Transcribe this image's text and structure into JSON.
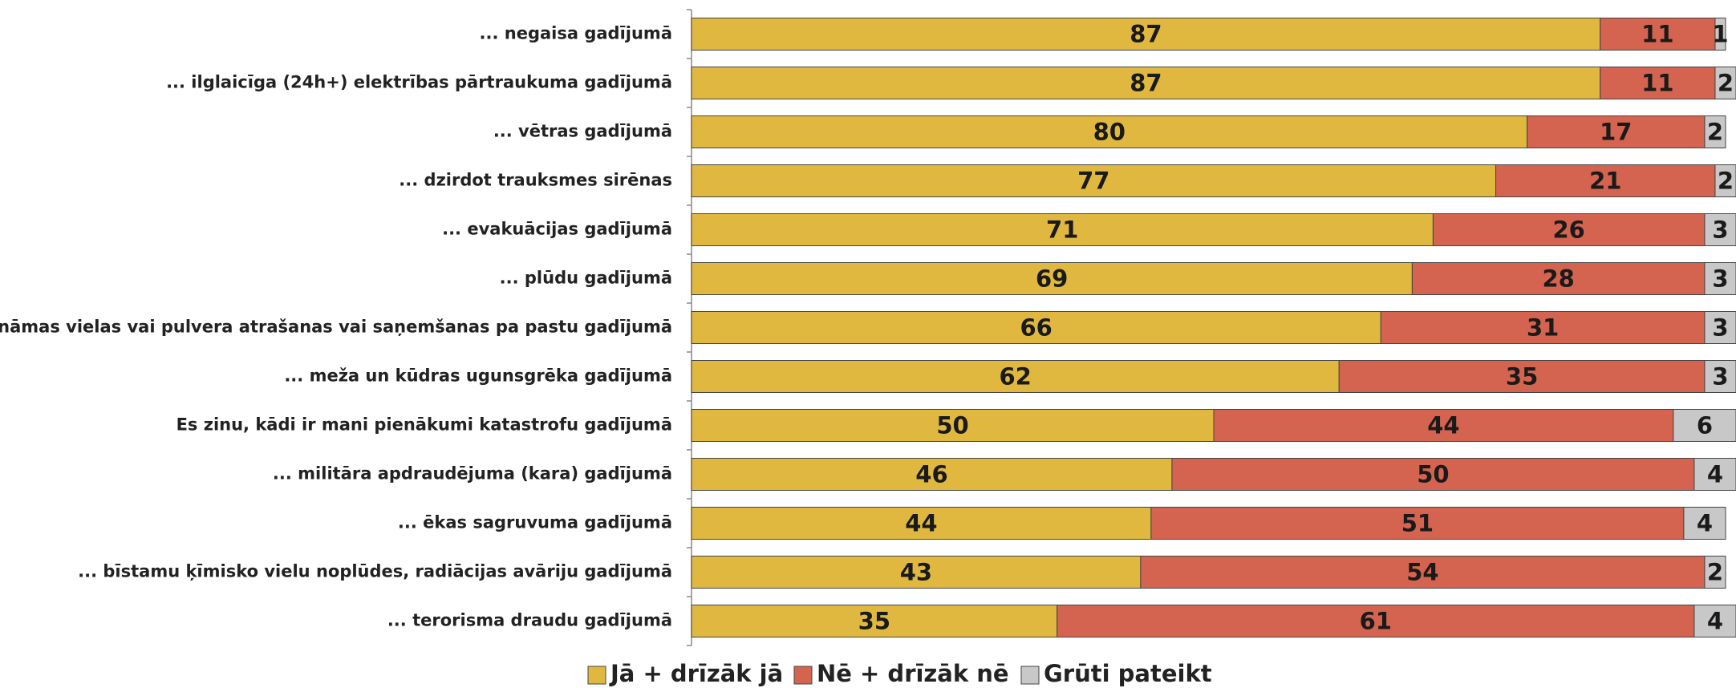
{
  "chart_data": {
    "type": "stacked_bar_horizontal",
    "categories": [
      "... negaisa gadījumā",
      "... ilglaicīga (24h+) elektrības pārtraukuma gadījumā",
      "... vētras gadījumā",
      "... dzirdot trauksmes sirēnas",
      "... evakuācijas gadījumā",
      "... plūdu gadījumā",
      "... nezināmas vielas vai pulvera atrašanas vai saņemšanas pa pastu gadījumā",
      "... meža un kūdras ugunsgrēka gadījumā",
      "Es zinu, kādi ir mani pienākumi katastrofu gadījumā",
      "... militāra apdraudējuma (kara) gadījumā",
      "... ēkas sagruvuma gadījumā",
      "... bīstamu ķīmisko vielu noplūdes, radiācijas avāriju gadījumā",
      "... terorisma draudu gadījumā"
    ],
    "series": [
      {
        "name": "Jā + drīzāk jā",
        "color": "#e0b840",
        "values": [
          87,
          87,
          80,
          77,
          71,
          69,
          66,
          62,
          50,
          46,
          44,
          43,
          35
        ]
      },
      {
        "name": "Nē + drīzāk nē",
        "color": "#d4644f",
        "values": [
          11,
          11,
          17,
          21,
          26,
          28,
          31,
          35,
          44,
          50,
          51,
          54,
          61
        ]
      },
      {
        "name": "Grūti pateikt",
        "color": "#c8c8c8",
        "values": [
          1,
          2,
          2,
          2,
          3,
          3,
          3,
          3,
          6,
          4,
          4,
          2,
          4
        ]
      }
    ],
    "xlim": [
      0,
      100
    ],
    "legend": "bottom"
  }
}
